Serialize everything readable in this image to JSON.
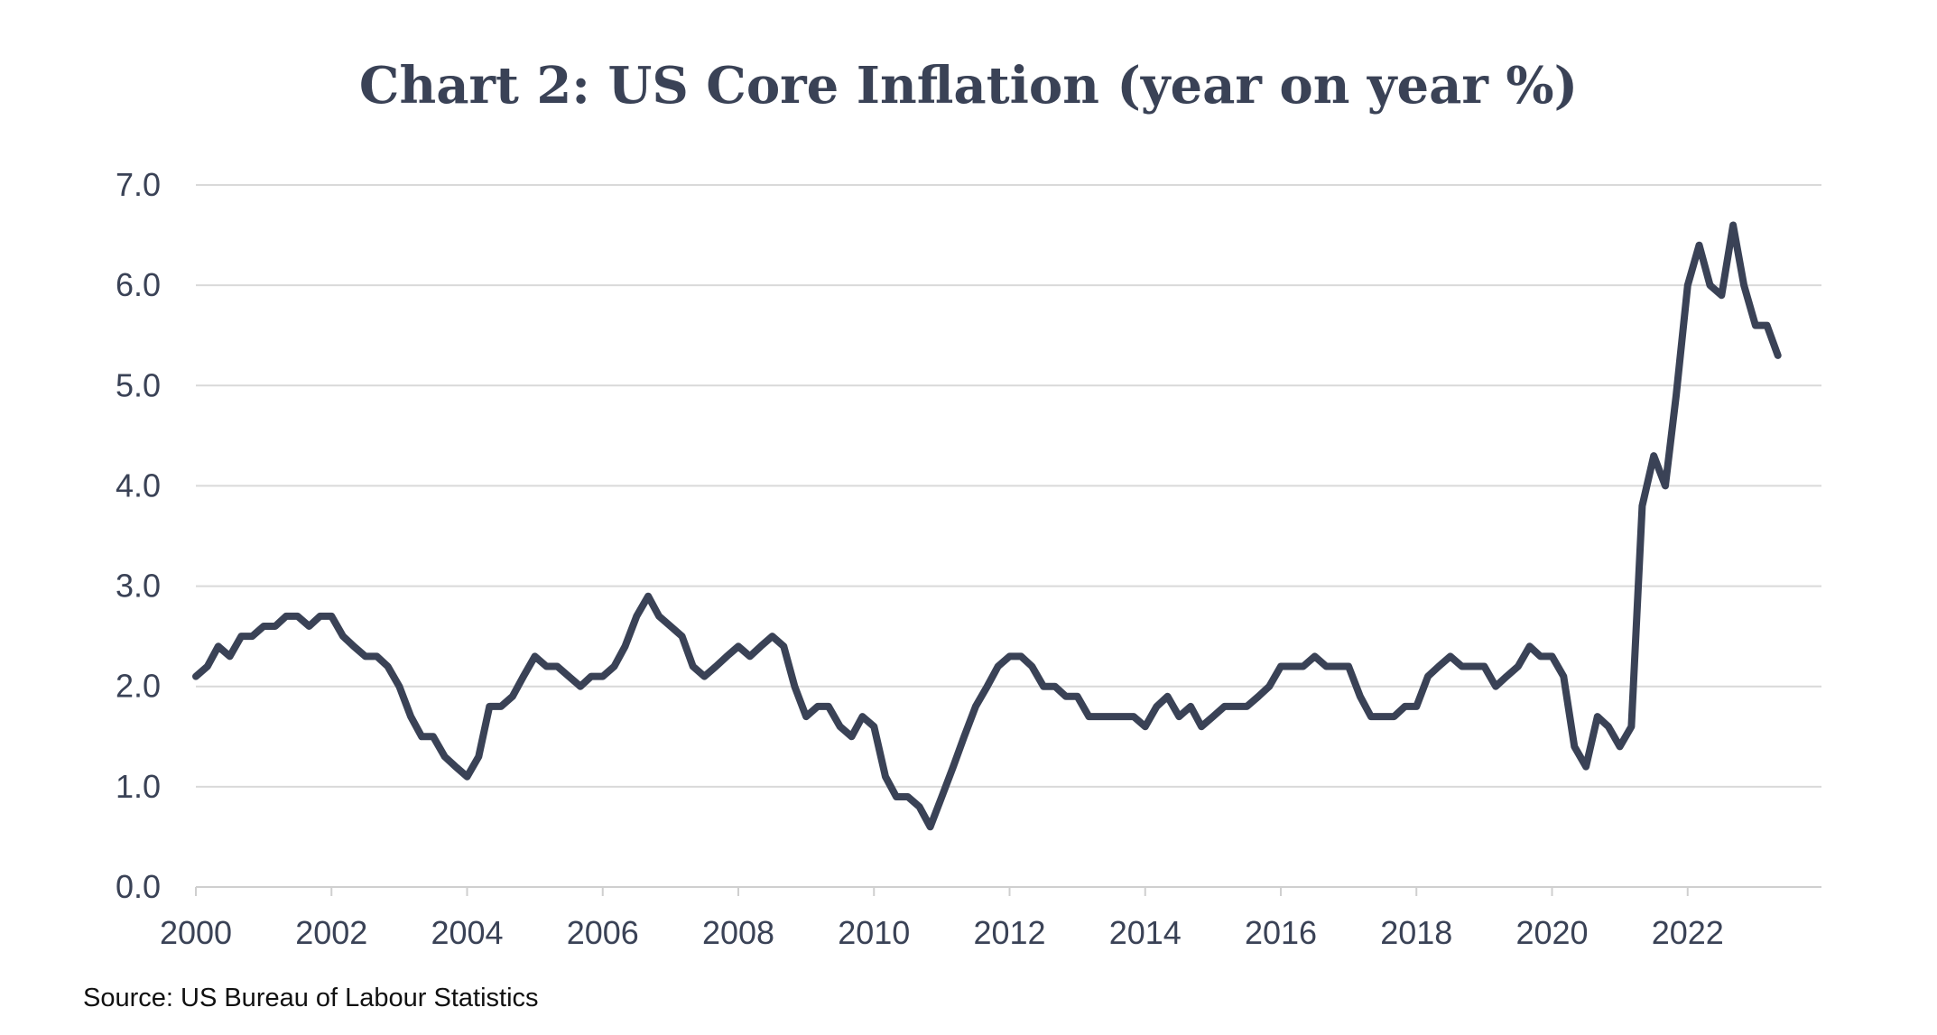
{
  "chart_data": {
    "type": "line",
    "title": "Chart 2: US Core Inflation (year on year %)",
    "source": "Source: US Bureau of Labour Statistics",
    "xlabel": "",
    "ylabel": "",
    "xlim": [
      2000,
      2024
    ],
    "ylim": [
      0,
      7
    ],
    "grid": true,
    "line_color": "#3a4256",
    "grid_color": "#d9d9d9",
    "y_ticks": [
      "0.0",
      "1.0",
      "2.0",
      "3.0",
      "4.0",
      "5.0",
      "6.0",
      "7.0"
    ],
    "x_ticks": [
      "2000",
      "2002",
      "2004",
      "2006",
      "2008",
      "2010",
      "2012",
      "2014",
      "2016",
      "2018",
      "2020",
      "2022"
    ],
    "series": [
      {
        "values": [
          [
            2000.0,
            2.1
          ],
          [
            2000.17,
            2.2
          ],
          [
            2000.33,
            2.4
          ],
          [
            2000.5,
            2.3
          ],
          [
            2000.67,
            2.5
          ],
          [
            2000.83,
            2.5
          ],
          [
            2001.0,
            2.6
          ],
          [
            2001.17,
            2.6
          ],
          [
            2001.33,
            2.7
          ],
          [
            2001.5,
            2.7
          ],
          [
            2001.67,
            2.6
          ],
          [
            2001.83,
            2.7
          ],
          [
            2002.0,
            2.7
          ],
          [
            2002.17,
            2.5
          ],
          [
            2002.33,
            2.4
          ],
          [
            2002.5,
            2.3
          ],
          [
            2002.67,
            2.3
          ],
          [
            2002.83,
            2.2
          ],
          [
            2003.0,
            2.0
          ],
          [
            2003.17,
            1.7
          ],
          [
            2003.33,
            1.5
          ],
          [
            2003.5,
            1.5
          ],
          [
            2003.67,
            1.3
          ],
          [
            2003.83,
            1.2
          ],
          [
            2004.0,
            1.1
          ],
          [
            2004.17,
            1.3
          ],
          [
            2004.33,
            1.8
          ],
          [
            2004.5,
            1.8
          ],
          [
            2004.67,
            1.9
          ],
          [
            2004.83,
            2.1
          ],
          [
            2005.0,
            2.3
          ],
          [
            2005.17,
            2.2
          ],
          [
            2005.33,
            2.2
          ],
          [
            2005.5,
            2.1
          ],
          [
            2005.67,
            2.0
          ],
          [
            2005.83,
            2.1
          ],
          [
            2006.0,
            2.1
          ],
          [
            2006.17,
            2.2
          ],
          [
            2006.33,
            2.4
          ],
          [
            2006.5,
            2.7
          ],
          [
            2006.67,
            2.9
          ],
          [
            2006.83,
            2.7
          ],
          [
            2007.0,
            2.6
          ],
          [
            2007.17,
            2.5
          ],
          [
            2007.33,
            2.2
          ],
          [
            2007.5,
            2.1
          ],
          [
            2007.67,
            2.2
          ],
          [
            2007.83,
            2.3
          ],
          [
            2008.0,
            2.4
          ],
          [
            2008.17,
            2.3
          ],
          [
            2008.33,
            2.4
          ],
          [
            2008.5,
            2.5
          ],
          [
            2008.67,
            2.4
          ],
          [
            2008.83,
            2.0
          ],
          [
            2009.0,
            1.7
          ],
          [
            2009.17,
            1.8
          ],
          [
            2009.33,
            1.8
          ],
          [
            2009.5,
            1.6
          ],
          [
            2009.67,
            1.5
          ],
          [
            2009.83,
            1.7
          ],
          [
            2010.0,
            1.6
          ],
          [
            2010.17,
            1.1
          ],
          [
            2010.33,
            0.9
          ],
          [
            2010.5,
            0.9
          ],
          [
            2010.67,
            0.8
          ],
          [
            2010.83,
            0.6
          ],
          [
            2011.0,
            0.9
          ],
          [
            2011.17,
            1.2
          ],
          [
            2011.33,
            1.5
          ],
          [
            2011.5,
            1.8
          ],
          [
            2011.67,
            2.0
          ],
          [
            2011.83,
            2.2
          ],
          [
            2012.0,
            2.3
          ],
          [
            2012.17,
            2.3
          ],
          [
            2012.33,
            2.2
          ],
          [
            2012.5,
            2.0
          ],
          [
            2012.67,
            2.0
          ],
          [
            2012.83,
            1.9
          ],
          [
            2013.0,
            1.9
          ],
          [
            2013.17,
            1.7
          ],
          [
            2013.33,
            1.7
          ],
          [
            2013.5,
            1.7
          ],
          [
            2013.67,
            1.7
          ],
          [
            2013.83,
            1.7
          ],
          [
            2014.0,
            1.6
          ],
          [
            2014.17,
            1.8
          ],
          [
            2014.33,
            1.9
          ],
          [
            2014.5,
            1.7
          ],
          [
            2014.67,
            1.8
          ],
          [
            2014.83,
            1.6
          ],
          [
            2015.0,
            1.7
          ],
          [
            2015.17,
            1.8
          ],
          [
            2015.33,
            1.8
          ],
          [
            2015.5,
            1.8
          ],
          [
            2015.67,
            1.9
          ],
          [
            2015.83,
            2.0
          ],
          [
            2016.0,
            2.2
          ],
          [
            2016.17,
            2.2
          ],
          [
            2016.33,
            2.2
          ],
          [
            2016.5,
            2.3
          ],
          [
            2016.67,
            2.2
          ],
          [
            2016.83,
            2.2
          ],
          [
            2017.0,
            2.2
          ],
          [
            2017.17,
            1.9
          ],
          [
            2017.33,
            1.7
          ],
          [
            2017.5,
            1.7
          ],
          [
            2017.67,
            1.7
          ],
          [
            2017.83,
            1.8
          ],
          [
            2018.0,
            1.8
          ],
          [
            2018.17,
            2.1
          ],
          [
            2018.33,
            2.2
          ],
          [
            2018.5,
            2.3
          ],
          [
            2018.67,
            2.2
          ],
          [
            2018.83,
            2.2
          ],
          [
            2019.0,
            2.2
          ],
          [
            2019.17,
            2.0
          ],
          [
            2019.33,
            2.1
          ],
          [
            2019.5,
            2.2
          ],
          [
            2019.67,
            2.4
          ],
          [
            2019.83,
            2.3
          ],
          [
            2020.0,
            2.3
          ],
          [
            2020.17,
            2.1
          ],
          [
            2020.33,
            1.4
          ],
          [
            2020.5,
            1.2
          ],
          [
            2020.67,
            1.7
          ],
          [
            2020.83,
            1.6
          ],
          [
            2021.0,
            1.4
          ],
          [
            2021.17,
            1.6
          ],
          [
            2021.33,
            3.8
          ],
          [
            2021.5,
            4.3
          ],
          [
            2021.67,
            4.0
          ],
          [
            2021.83,
            4.9
          ],
          [
            2022.0,
            6.0
          ],
          [
            2022.17,
            6.4
          ],
          [
            2022.33,
            6.0
          ],
          [
            2022.5,
            5.9
          ],
          [
            2022.67,
            6.6
          ],
          [
            2022.83,
            6.0
          ],
          [
            2023.0,
            5.6
          ],
          [
            2023.17,
            5.6
          ],
          [
            2023.33,
            5.3
          ]
        ]
      }
    ]
  }
}
